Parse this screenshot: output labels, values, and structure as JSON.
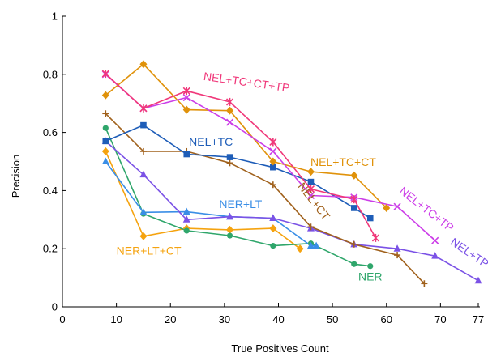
{
  "chart_data": {
    "type": "line",
    "xlabel": "True Positives Count",
    "ylabel": "Precision",
    "xlim": [
      0,
      77
    ],
    "ylim": [
      0,
      1
    ],
    "x_ticks": [
      0,
      10,
      20,
      30,
      40,
      50,
      60,
      70,
      77
    ],
    "x_tick_labels": [
      "0",
      "10",
      "20",
      "30",
      "40",
      "50",
      "60",
      "70",
      "77"
    ],
    "y_ticks": [
      0,
      0.2,
      0.4,
      0.6,
      0.8,
      1
    ],
    "y_tick_labels": [
      "0",
      "0.2",
      "0.4",
      "0.6",
      "0.8",
      "1"
    ],
    "grid": false,
    "series": [
      {
        "name": "NER+LT+CT",
        "color": "#f5a30f",
        "marker": "diamond",
        "x": [
          8,
          15,
          23,
          31,
          39,
          44
        ],
        "y": [
          0.535,
          0.243,
          0.27,
          0.265,
          0.27,
          0.2
        ]
      },
      {
        "name": "NER",
        "color": "#2fa66b",
        "marker": "circle",
        "x": [
          8,
          15,
          23,
          31,
          39,
          46,
          54,
          57
        ],
        "y": [
          0.615,
          0.32,
          0.262,
          0.245,
          0.21,
          0.218,
          0.147,
          0.14
        ]
      },
      {
        "name": "NER+LT",
        "color": "#3a8ee6",
        "marker": "triangle",
        "x": [
          8,
          15,
          23,
          31,
          39,
          46,
          47
        ],
        "y": [
          0.5,
          0.325,
          0.327,
          0.31,
          0.305,
          0.21,
          0.21
        ]
      },
      {
        "name": "NEL+TP",
        "color": "#7b52e6",
        "marker": "triangle",
        "x": [
          8,
          15,
          23,
          31,
          39,
          46,
          54,
          62,
          69,
          77
        ],
        "y": [
          0.57,
          0.455,
          0.3,
          0.31,
          0.305,
          0.27,
          0.215,
          0.2,
          0.175,
          0.09
        ]
      },
      {
        "name": "NEL+CT",
        "color": "#a0611c",
        "marker": "plus",
        "x": [
          8,
          15,
          23,
          31,
          39,
          46,
          54,
          62,
          67
        ],
        "y": [
          0.665,
          0.535,
          0.535,
          0.495,
          0.42,
          0.275,
          0.215,
          0.178,
          0.08
        ]
      },
      {
        "name": "NEL+TC",
        "color": "#1e5db8",
        "marker": "square",
        "x": [
          8,
          15,
          23,
          31,
          39,
          46,
          54,
          57
        ],
        "y": [
          0.57,
          0.625,
          0.525,
          0.515,
          0.48,
          0.43,
          0.34,
          0.305
        ]
      },
      {
        "name": "NEL+TC+CT",
        "color": "#e0920a",
        "marker": "diamond",
        "x": [
          8,
          15,
          23,
          31,
          39,
          46,
          54,
          60
        ],
        "y": [
          0.728,
          0.835,
          0.678,
          0.675,
          0.5,
          0.465,
          0.452,
          0.34
        ]
      },
      {
        "name": "NEL+TC+TP",
        "color": "#cc3ee8",
        "marker": "x",
        "x": [
          8,
          15,
          23,
          31,
          39,
          46,
          54,
          62,
          69
        ],
        "y": [
          0.8,
          0.683,
          0.72,
          0.635,
          0.535,
          0.383,
          0.377,
          0.345,
          0.228
        ]
      },
      {
        "name": "NEL+TC+CT+TP",
        "color": "#f0387a",
        "marker": "asterisk",
        "x": [
          8,
          15,
          23,
          31,
          39,
          46,
          54,
          58
        ],
        "y": [
          0.802,
          0.683,
          0.743,
          0.705,
          0.567,
          0.405,
          0.37,
          0.237
        ]
      }
    ],
    "annotations": [
      {
        "text": "NEL+TC+CT+TP",
        "series": "NEL+TC+CT+TP",
        "x": 34,
        "y": 0.76,
        "rotate": 8
      },
      {
        "text": "NEL+TC",
        "series": "NEL+TC",
        "x": 27.5,
        "y": 0.555,
        "rotate": 0
      },
      {
        "text": "NEL+TC+CT",
        "series": "NEL+TC+CT",
        "x": 52,
        "y": 0.485,
        "rotate": 0
      },
      {
        "text": "NEL+CT",
        "series": "NEL+CT",
        "x": 46,
        "y": 0.355,
        "rotate": 52
      },
      {
        "text": "NEL+TC+TP",
        "series": "NEL+TC+TP",
        "x": 67,
        "y": 0.325,
        "rotate": 38
      },
      {
        "text": "NEL+TP",
        "series": "NEL+TP",
        "x": 75,
        "y": 0.175,
        "rotate": 34
      },
      {
        "text": "NER+LT",
        "series": "NER+LT",
        "x": 33,
        "y": 0.34,
        "rotate": 0
      },
      {
        "text": "NER+LT+CT",
        "series": "NER+LT+CT",
        "x": 16,
        "y": 0.18,
        "rotate": 0
      },
      {
        "text": "NER",
        "series": "NER",
        "x": 57,
        "y": 0.09,
        "rotate": 0
      }
    ]
  }
}
